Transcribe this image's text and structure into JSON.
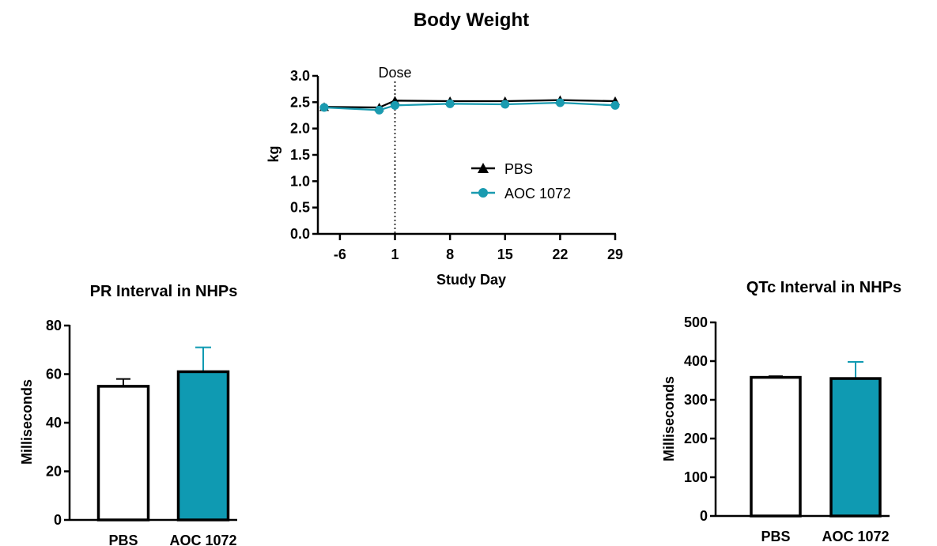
{
  "chart_data": [
    {
      "id": "body_weight",
      "type": "line",
      "title": "Body Weight",
      "xlabel": "Study Day",
      "ylabel": "kg",
      "x_ticks": [
        "-6",
        "1",
        "8",
        "15",
        "22",
        "29"
      ],
      "y_ticks": [
        "0.0",
        "0.5",
        "1.0",
        "1.5",
        "2.0",
        "2.5",
        "3.0"
      ],
      "xlim": [
        -8,
        29
      ],
      "ylim": [
        0,
        3.0
      ],
      "annotation": {
        "text": "Dose",
        "x": 1
      },
      "legend_position": "center-right",
      "series": [
        {
          "name": "PBS",
          "color": "#000000",
          "marker": "triangle",
          "x": [
            -8,
            -1,
            1,
            8,
            15,
            22,
            29
          ],
          "y": [
            2.41,
            2.4,
            2.53,
            2.52,
            2.52,
            2.54,
            2.52
          ]
        },
        {
          "name": "AOC 1072",
          "color": "#1a9bb0",
          "marker": "circle",
          "x": [
            -8,
            -1,
            1,
            8,
            15,
            22,
            29
          ],
          "y": [
            2.4,
            2.35,
            2.44,
            2.47,
            2.46,
            2.49,
            2.44
          ]
        }
      ]
    },
    {
      "id": "pr_interval",
      "type": "bar",
      "title": "PR Interval in NHPs",
      "xlabel": "",
      "ylabel": "Milliseconds",
      "categories": [
        "PBS",
        "AOC 1072"
      ],
      "values": [
        55,
        61
      ],
      "errors": [
        3,
        10
      ],
      "colors": [
        "#ffffff",
        "#0f9ab2"
      ],
      "y_ticks": [
        "0",
        "20",
        "40",
        "60",
        "80"
      ],
      "ylim": [
        0,
        80
      ]
    },
    {
      "id": "qtc_interval",
      "type": "bar",
      "title": "QTc Interval in NHPs",
      "xlabel": "",
      "ylabel": "Milliseconds",
      "categories": [
        "PBS",
        "AOC 1072"
      ],
      "values": [
        358,
        355
      ],
      "errors": [
        3,
        43
      ],
      "colors": [
        "#ffffff",
        "#0f9ab2"
      ],
      "y_ticks": [
        "0",
        "100",
        "200",
        "300",
        "400",
        "500"
      ],
      "ylim": [
        0,
        500
      ]
    }
  ]
}
